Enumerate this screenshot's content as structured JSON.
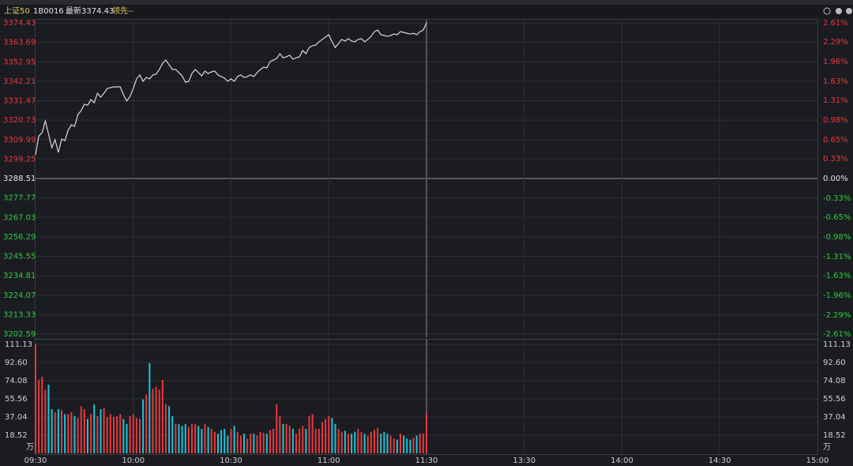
{
  "header": {
    "index_name": "上证50",
    "code": "1B0016",
    "latest": "最新3374.43",
    "lead": "领先--"
  },
  "chart_data": {
    "type": "line",
    "color": "#d9d9d9",
    "up_color": "#e8393d",
    "down_color": "#1fc4d6",
    "flat_color": "#e6e6e6",
    "grid": true,
    "xlim": [
      0,
      240
    ],
    "xticks": [
      {
        "value": 0,
        "label": "09:30"
      },
      {
        "value": 30,
        "label": "10:00"
      },
      {
        "value": 60,
        "label": "10:30"
      },
      {
        "value": 90,
        "label": "11:00"
      },
      {
        "value": 120,
        "label": "11:30"
      },
      {
        "value": 150,
        "label": "13:30"
      },
      {
        "value": 180,
        "label": "14:00"
      },
      {
        "value": 210,
        "label": "14:30"
      },
      {
        "value": 240,
        "label": "15:00"
      }
    ],
    "ylim": [
      3202.59,
      3374.43
    ],
    "yticks": [
      3374.43,
      3363.69,
      3352.95,
      3342.21,
      3331.47,
      3320.73,
      3309.99,
      3299.25,
      3288.51,
      3277.77,
      3267.03,
      3256.29,
      3245.55,
      3234.81,
      3224.07,
      3213.33,
      3202.59
    ],
    "y2lim": [
      -2.61,
      2.61
    ],
    "y2ticks": [
      {
        "value": 2.61,
        "label": "2.61%"
      },
      {
        "value": 2.29,
        "label": "2.29%"
      },
      {
        "value": 1.96,
        "label": "1.96%"
      },
      {
        "value": 1.63,
        "label": "1.63%"
      },
      {
        "value": 1.31,
        "label": "1.31%"
      },
      {
        "value": 0.98,
        "label": "0.98%"
      },
      {
        "value": 0.65,
        "label": "0.65%"
      },
      {
        "value": 0.33,
        "label": "0.33%"
      },
      {
        "value": 0,
        "label": "0.00%"
      },
      {
        "value": -0.33,
        "label": "-0.33%"
      },
      {
        "value": -0.65,
        "label": "-0.65%"
      },
      {
        "value": -0.98,
        "label": "-0.98%"
      },
      {
        "value": -1.31,
        "label": "-1.31%"
      },
      {
        "value": -1.63,
        "label": "-1.63%"
      },
      {
        "value": -1.96,
        "label": "-1.96%"
      },
      {
        "value": -2.29,
        "label": "-2.29%"
      },
      {
        "value": -2.61,
        "label": "-2.61%"
      }
    ],
    "x": [
      0,
      1,
      2,
      3,
      4,
      5,
      6,
      7,
      8,
      9,
      10,
      11,
      12,
      13,
      14,
      15,
      16,
      17,
      18,
      19,
      20,
      21,
      22,
      23,
      24,
      25,
      26,
      27,
      28,
      29,
      30,
      31,
      32,
      33,
      34,
      35,
      36,
      37,
      38,
      39,
      40,
      41,
      42,
      43,
      44,
      45,
      46,
      47,
      48,
      49,
      50,
      51,
      52,
      53,
      54,
      55,
      56,
      57,
      58,
      59,
      60,
      61,
      62,
      63,
      64,
      65,
      66,
      67,
      68,
      69,
      70,
      71,
      72,
      73,
      74,
      75,
      76,
      77,
      78,
      79,
      80,
      81,
      82,
      83,
      84,
      85,
      86,
      87,
      88,
      89,
      90,
      91,
      92,
      93,
      94,
      95,
      96,
      97,
      98,
      99,
      100,
      101,
      102,
      103,
      104,
      105,
      106,
      107,
      108,
      109,
      110,
      111,
      112,
      113,
      114,
      115,
      116,
      117,
      118,
      119,
      120
    ],
    "values": [
      3301.6,
      3312,
      3313.8,
      3320.3,
      3313,
      3305.5,
      3309.9,
      3302.9,
      3310.3,
      3309.4,
      3315.1,
      3318.2,
      3317.3,
      3323.8,
      3326,
      3329.5,
      3329,
      3332.1,
      3330.3,
      3335.6,
      3333.4,
      3335.6,
      3338.2,
      3338.7,
      3339.1,
      3339.1,
      3339.1,
      3334.7,
      3331.3,
      3333.9,
      3338.2,
      3343.5,
      3345.7,
      3342.2,
      3344.3,
      3343.5,
      3345.7,
      3346.1,
      3348.7,
      3352.2,
      3353.9,
      3351.3,
      3348.7,
      3348.7,
      3347,
      3345.2,
      3341.7,
      3342.1,
      3346.5,
      3348.7,
      3347,
      3345.2,
      3347.8,
      3346.5,
      3347.4,
      3347.8,
      3345.7,
      3344.8,
      3343.9,
      3342.2,
      3343.5,
      3342.2,
      3344.8,
      3345.7,
      3344.3,
      3344.8,
      3345.7,
      3344.8,
      3347,
      3348.7,
      3350,
      3349.6,
      3353.1,
      3353.9,
      3354.8,
      3357.4,
      3355.2,
      3355.7,
      3356.6,
      3354.4,
      3355.2,
      3355.7,
      3359.2,
      3357.4,
      3360.9,
      3361.8,
      3362.2,
      3364,
      3365.3,
      3366.6,
      3367.9,
      3364,
      3360.9,
      3363.1,
      3365.3,
      3364.4,
      3365.7,
      3364.4,
      3364,
      3365.3,
      3365.7,
      3364,
      3365.3,
      3367,
      3369.6,
      3370.5,
      3367.9,
      3367.5,
      3367,
      3367.5,
      3368.3,
      3367.9,
      3369.6,
      3369.2,
      3368.7,
      3368.3,
      3368.7,
      3367.9,
      3369.6,
      3370.5,
      3374.43
    ],
    "volume": {
      "unit": "万",
      "ylim": [
        0,
        111.13
      ],
      "yticks": [
        111.13,
        {
          "value": 92.6,
          "label": "92.60"
        },
        74.08,
        55.56,
        37.04,
        18.52
      ],
      "values": [
        111,
        75,
        78,
        65,
        70,
        45,
        42,
        45,
        44,
        40,
        40,
        42,
        38,
        36,
        48,
        45,
        35,
        40,
        50,
        38,
        45,
        46,
        37,
        40,
        37,
        38,
        40,
        35,
        30,
        38,
        40,
        36,
        35,
        55,
        60,
        92,
        66,
        68,
        65,
        75,
        50,
        48,
        38,
        30,
        30,
        28,
        30,
        27,
        30,
        30,
        28,
        25,
        30,
        27,
        25,
        22,
        20,
        24,
        25,
        18,
        25,
        28,
        22,
        18,
        20,
        15,
        20,
        20,
        18,
        22,
        21,
        20,
        24,
        25,
        50,
        38,
        30,
        30,
        28,
        25,
        20,
        25,
        28,
        25,
        38,
        40,
        25,
        25,
        32,
        35,
        38,
        36,
        30,
        25,
        22,
        23,
        20,
        20,
        22,
        25,
        22,
        20,
        18,
        22,
        24,
        26,
        20,
        22,
        20,
        18,
        15,
        14,
        20,
        18,
        15,
        14,
        16,
        18,
        20,
        20,
        40
      ]
    }
  }
}
